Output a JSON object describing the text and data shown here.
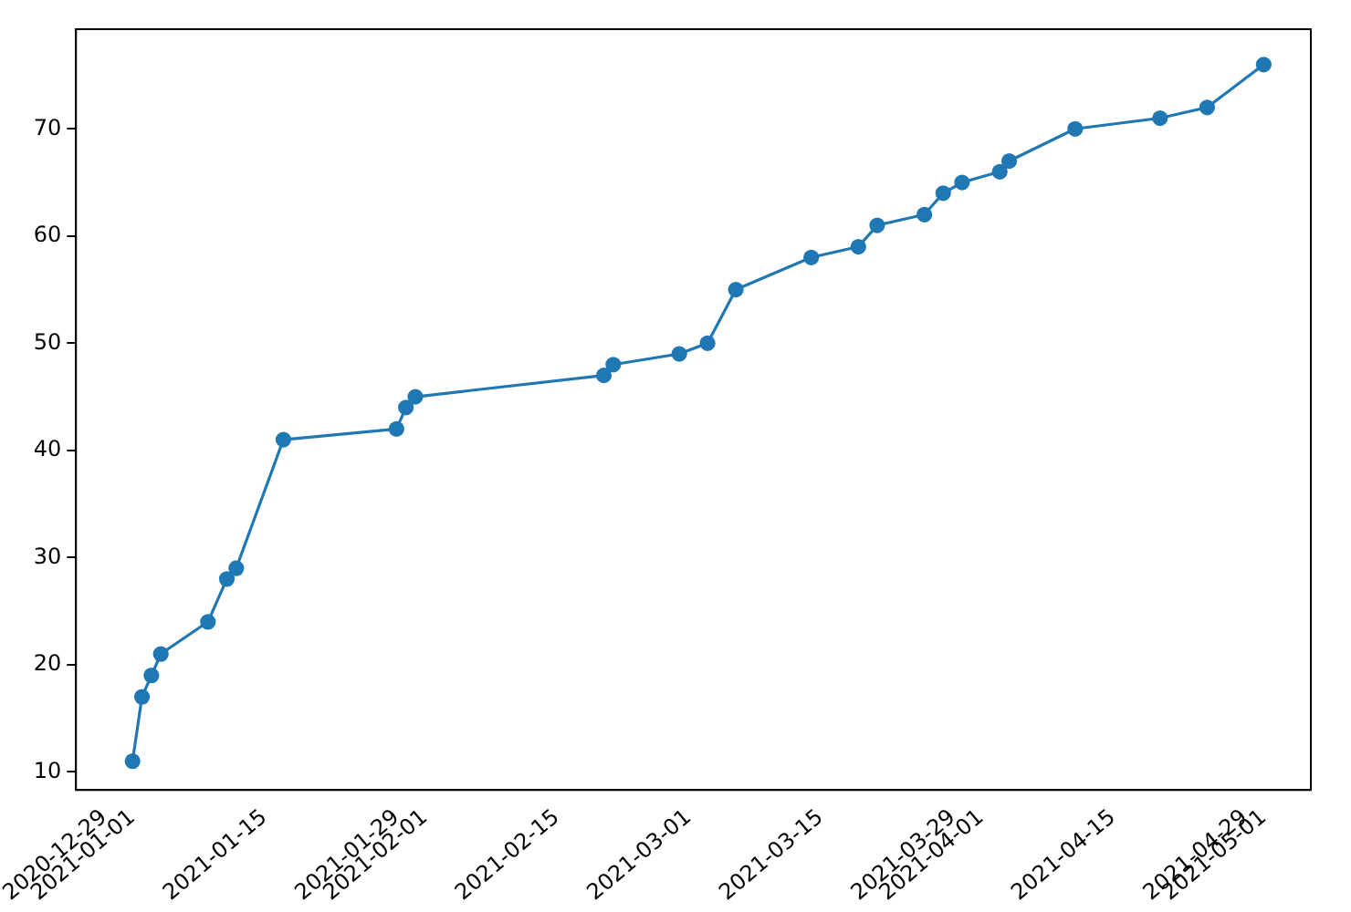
{
  "chart_data": {
    "type": "line",
    "x": [
      "2021-01-01",
      "2021-01-02",
      "2021-01-03",
      "2021-01-04",
      "2021-01-09",
      "2021-01-11",
      "2021-01-12",
      "2021-01-17",
      "2021-01-29",
      "2021-01-30",
      "2021-01-31",
      "2021-02-20",
      "2021-02-21",
      "2021-02-28",
      "2021-03-03",
      "2021-03-06",
      "2021-03-14",
      "2021-03-19",
      "2021-03-21",
      "2021-03-26",
      "2021-03-28",
      "2021-03-30",
      "2021-04-03",
      "2021-04-04",
      "2021-04-11",
      "2021-04-20",
      "2021-04-25",
      "2021-05-01"
    ],
    "series": [
      {
        "color": "#1f77b4",
        "values": [
          11,
          17,
          19,
          21,
          24,
          28,
          29,
          41,
          42,
          44,
          45,
          47,
          48,
          49,
          50,
          55,
          58,
          59,
          61,
          62,
          64,
          65,
          66,
          67,
          70,
          71,
          72,
          76
        ]
      }
    ],
    "xlim": [
      "2020-12-26",
      "2021-05-06"
    ],
    "xticks": [
      "2020-12-29",
      "2021-01-01",
      "2021-01-15",
      "2021-01-29",
      "2021-02-01",
      "2021-02-15",
      "2021-03-01",
      "2021-03-15",
      "2021-03-29",
      "2021-04-01",
      "2021-04-15",
      "2021-04-29",
      "2021-05-01"
    ],
    "ylim": [
      8.3,
      79.3
    ],
    "yticks": [
      10,
      20,
      30,
      40,
      50,
      60,
      70
    ],
    "marker": "circle",
    "line_style": "solid",
    "grid": false,
    "legend": false
  }
}
